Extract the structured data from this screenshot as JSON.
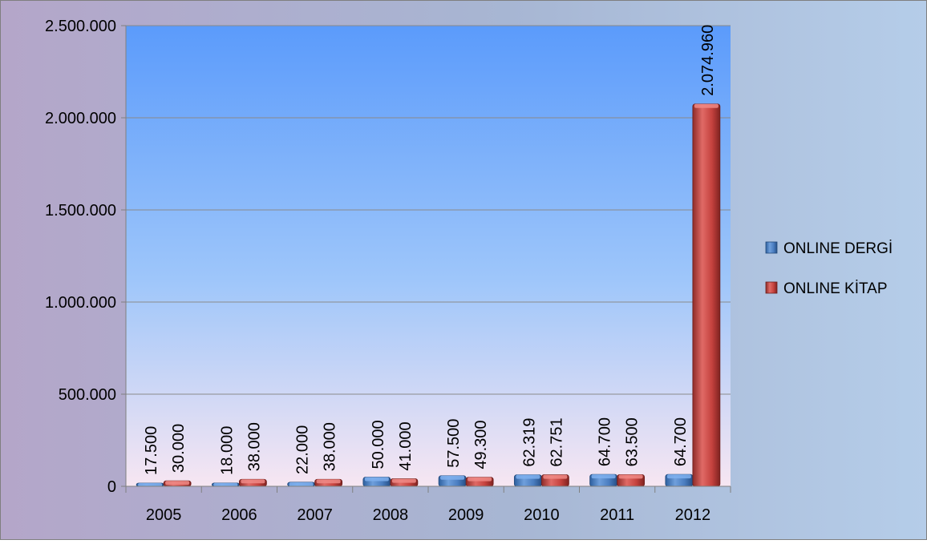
{
  "chart_data": {
    "type": "bar",
    "title": "",
    "xlabel": "",
    "ylabel": "",
    "categories": [
      "2005",
      "2006",
      "2007",
      "2008",
      "2009",
      "2010",
      "2011",
      "2012"
    ],
    "series": [
      {
        "name": "ONLINE DERGİ",
        "color": "#4f81bd",
        "values": [
          17500,
          18000,
          22000,
          50000,
          57500,
          62319,
          64700,
          64700
        ],
        "labels": [
          "17.500",
          "18.000",
          "22.000",
          "50.000",
          "57.500",
          "62.319",
          "64.700",
          "64.700"
        ]
      },
      {
        "name": "ONLINE KİTAP",
        "color": "#c0504d",
        "values": [
          30000,
          38000,
          38000,
          41000,
          49300,
          62751,
          63500,
          2074960
        ],
        "labels": [
          "30.000",
          "38.000",
          "38.000",
          "41.000",
          "49.300",
          "62.751",
          "63.500",
          "2.074.960"
        ]
      }
    ],
    "ylim": [
      0,
      2500000
    ],
    "yticks": [
      {
        "value": 0,
        "label": "0"
      },
      {
        "value": 500000,
        "label": "500.000"
      },
      {
        "value": 1000000,
        "label": "1.000.000"
      },
      {
        "value": 1500000,
        "label": "1.500.000"
      },
      {
        "value": 2000000,
        "label": "2.000.000"
      },
      {
        "value": 2500000,
        "label": "2.500.000"
      }
    ],
    "grid": true,
    "legend_position": "right",
    "colors": {
      "plot_top": "#5b9bfb",
      "plot_bottom": "#f7e6f2",
      "outer_left": "#b4a6c9",
      "outer_right": "#b5cde9",
      "gridline": "#8a8a8a",
      "axis": "#808080"
    }
  }
}
